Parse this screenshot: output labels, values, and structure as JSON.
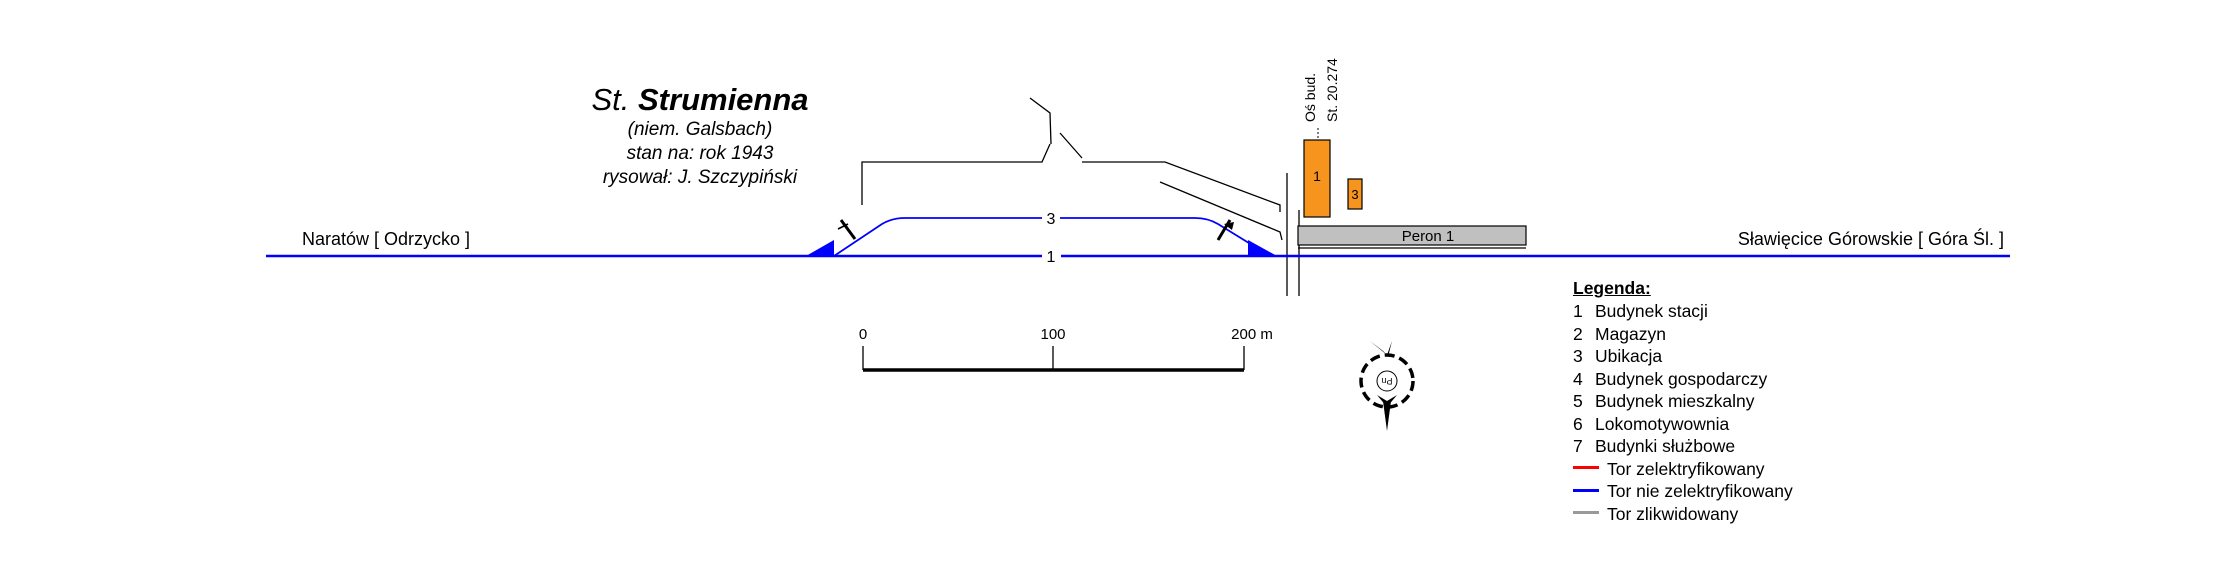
{
  "station": {
    "prefix": "St.",
    "name": "Strumienna",
    "german_name": "(niem. Galsbach)",
    "state": "stan na: rok 1943",
    "author": "rysował: J. Szczypiński"
  },
  "directions": {
    "left": "Naratów [ Odrzycko ]",
    "right": "Sławięcice Górowskie [ Góra Śl. ]"
  },
  "tracks": {
    "main_label": "1",
    "siding_label": "3"
  },
  "buildings": {
    "station_label": "1",
    "toilet_label": "3"
  },
  "platform": {
    "label": "Peron 1"
  },
  "axis": {
    "line1": "Oś bud.",
    "line2": "St. 20.274"
  },
  "scale": {
    "tick0": "0",
    "tick1": "100",
    "tick2": "200 m"
  },
  "compass": {
    "label": "Pn"
  },
  "legend": {
    "title": "Legenda:",
    "items": [
      {
        "num": "1",
        "text": "Budynek stacji"
      },
      {
        "num": "2",
        "text": "Magazyn"
      },
      {
        "num": "3",
        "text": "Ubikacja"
      },
      {
        "num": "4",
        "text": "Budynek gospodarczy"
      },
      {
        "num": "5",
        "text": "Budynek mieszkalny"
      },
      {
        "num": "6",
        "text": "Lokomotywownia"
      },
      {
        "num": "7",
        "text": "Budynki służbowe"
      }
    ],
    "lines": [
      {
        "text": "Tor zelektryfikowany",
        "color": "#ff0000"
      },
      {
        "text": "Tor nie zelektryfikowany",
        "color": "#0000ff"
      },
      {
        "text": "Tor zlikwidowany",
        "color": "#999999"
      }
    ]
  },
  "colors": {
    "track": "#0000ff",
    "building": "#f7941d",
    "platform": "#c0c0c0"
  }
}
